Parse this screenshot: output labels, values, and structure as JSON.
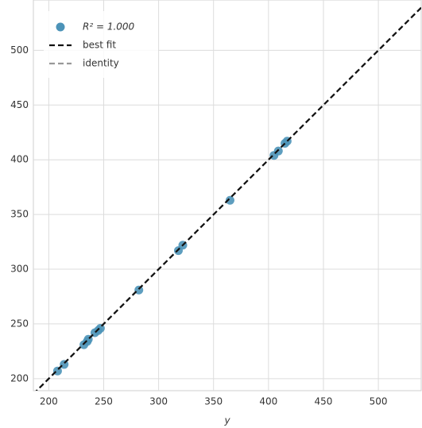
{
  "chart_data": {
    "type": "scatter",
    "xlabel": "y",
    "xlim": [
      186,
      539
    ],
    "ylim": [
      189,
      546
    ],
    "xticks": [
      200,
      250,
      300,
      350,
      400,
      450,
      500
    ],
    "yticks": [
      200,
      250,
      300,
      350,
      400,
      450,
      500
    ],
    "grid": true,
    "legend": "upper left",
    "series": [
      {
        "name": "R² = 1.000",
        "color": "#4c93b8",
        "x": [
          208,
          214,
          232,
          235,
          236,
          242,
          245,
          247,
          282,
          318,
          322,
          365,
          405,
          409,
          415,
          417
        ],
        "values": [
          207,
          213,
          231,
          234,
          236,
          242,
          244,
          246,
          281,
          317,
          322,
          363,
          404,
          408,
          415,
          417
        ]
      },
      {
        "name": "identity",
        "color": "#999999",
        "line": true,
        "x": [
          186,
          539
        ],
        "values": [
          186,
          539
        ]
      },
      {
        "name": "best fit",
        "color": "#111111",
        "line": true,
        "x": [
          186,
          539
        ],
        "values": [
          186,
          539
        ]
      }
    ]
  }
}
